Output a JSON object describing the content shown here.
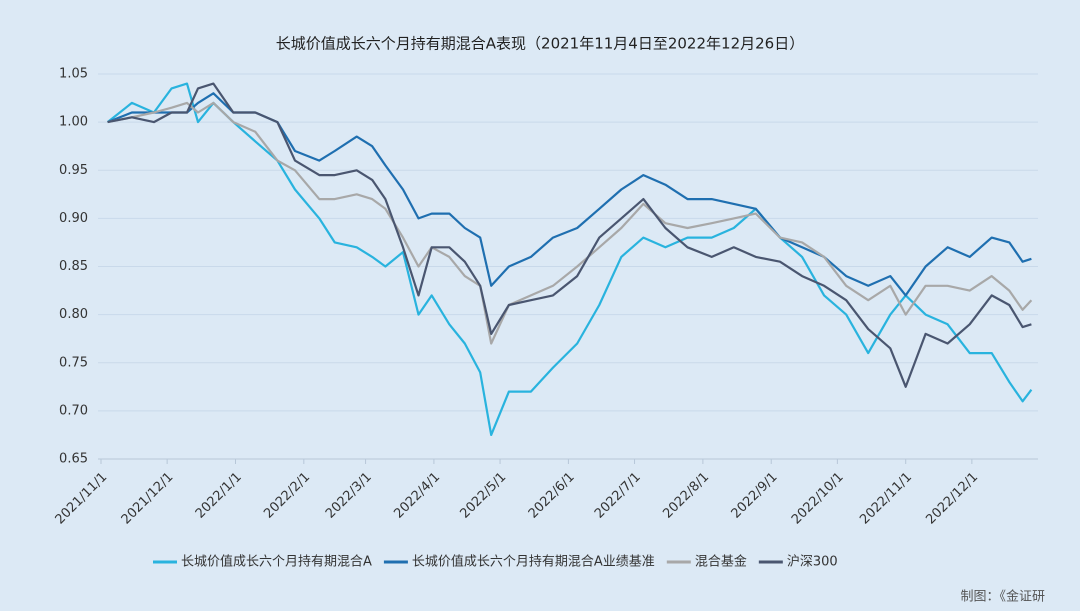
{
  "chart_data": {
    "type": "line",
    "title": "长城价值成长六个月持有期混合A表现（2021年11月4日至2022年12月26日）",
    "source": "制图：《金证研",
    "x": [
      "2021/11/4",
      "2021/11/15",
      "2021/11/25",
      "2021/12/3",
      "2021/12/10",
      "2021/12/15",
      "2021/12/22",
      "2021/12/31",
      "2022/1/10",
      "2022/1/20",
      "2022/1/28",
      "2022/2/8",
      "2022/2/15",
      "2022/2/25",
      "2022/3/4",
      "2022/3/10",
      "2022/3/18",
      "2022/3/25",
      "2022/3/31",
      "2022/4/8",
      "2022/4/15",
      "2022/4/22",
      "2022/4/27",
      "2022/5/5",
      "2022/5/15",
      "2022/5/25",
      "2022/6/5",
      "2022/6/15",
      "2022/6/25",
      "2022/7/5",
      "2022/7/15",
      "2022/7/25",
      "2022/8/5",
      "2022/8/15",
      "2022/8/25",
      "2022/9/5",
      "2022/9/15",
      "2022/9/25",
      "2022/10/5",
      "2022/10/15",
      "2022/10/25",
      "2022/11/1",
      "2022/11/10",
      "2022/11/20",
      "2022/11/30",
      "2022/12/10",
      "2022/12/18",
      "2022/12/24",
      "2022/12/28"
    ],
    "series": [
      {
        "name": "长城价值成长六个月持有期混合A",
        "color": "#29b3de",
        "values": [
          1.0,
          1.02,
          1.01,
          1.035,
          1.04,
          1.0,
          1.02,
          1.0,
          0.98,
          0.96,
          0.93,
          0.9,
          0.875,
          0.87,
          0.86,
          0.85,
          0.865,
          0.8,
          0.82,
          0.79,
          0.77,
          0.74,
          0.675,
          0.72,
          0.72,
          0.745,
          0.77,
          0.81,
          0.86,
          0.88,
          0.87,
          0.88,
          0.88,
          0.89,
          0.91,
          0.88,
          0.86,
          0.82,
          0.8,
          0.76,
          0.8,
          0.82,
          0.8,
          0.79,
          0.76,
          0.76,
          0.73,
          0.71,
          0.722
        ]
      },
      {
        "name": "长城价值成长六个月持有期混合A业绩基准",
        "color": "#1f6fb0",
        "values": [
          1.0,
          1.01,
          1.01,
          1.01,
          1.01,
          1.02,
          1.03,
          1.01,
          1.01,
          1.0,
          0.97,
          0.96,
          0.97,
          0.985,
          0.975,
          0.955,
          0.93,
          0.9,
          0.905,
          0.905,
          0.89,
          0.88,
          0.83,
          0.85,
          0.86,
          0.88,
          0.89,
          0.91,
          0.93,
          0.945,
          0.935,
          0.92,
          0.92,
          0.915,
          0.91,
          0.88,
          0.87,
          0.86,
          0.84,
          0.83,
          0.84,
          0.82,
          0.85,
          0.87,
          0.86,
          0.88,
          0.875,
          0.855,
          0.858
        ]
      },
      {
        "name": "混合基金",
        "color": "#a8a8a8",
        "values": [
          1.0,
          1.005,
          1.01,
          1.015,
          1.02,
          1.01,
          1.02,
          1.0,
          0.99,
          0.96,
          0.95,
          0.92,
          0.92,
          0.925,
          0.92,
          0.91,
          0.88,
          0.85,
          0.87,
          0.86,
          0.84,
          0.83,
          0.77,
          0.81,
          0.82,
          0.83,
          0.85,
          0.87,
          0.89,
          0.915,
          0.895,
          0.89,
          0.895,
          0.9,
          0.905,
          0.88,
          0.875,
          0.86,
          0.83,
          0.815,
          0.83,
          0.8,
          0.83,
          0.83,
          0.825,
          0.84,
          0.825,
          0.805,
          0.815
        ]
      },
      {
        "name": "沪深300",
        "color": "#4a5670",
        "values": [
          1.0,
          1.005,
          1.0,
          1.01,
          1.01,
          1.035,
          1.04,
          1.01,
          1.01,
          1.0,
          0.96,
          0.945,
          0.945,
          0.95,
          0.94,
          0.92,
          0.87,
          0.82,
          0.87,
          0.87,
          0.855,
          0.83,
          0.78,
          0.81,
          0.815,
          0.82,
          0.84,
          0.88,
          0.9,
          0.92,
          0.89,
          0.87,
          0.86,
          0.87,
          0.86,
          0.855,
          0.84,
          0.83,
          0.815,
          0.785,
          0.765,
          0.725,
          0.78,
          0.77,
          0.79,
          0.82,
          0.81,
          0.787,
          0.79
        ]
      }
    ],
    "xlim": [
      "2021/11/1",
      "2022/12/31"
    ],
    "xticks": [
      "2021/11/1",
      "2021/12/1",
      "2022/1/1",
      "2022/2/1",
      "2022/3/1",
      "2022/4/1",
      "2022/5/1",
      "2022/6/1",
      "2022/7/1",
      "2022/8/1",
      "2022/9/1",
      "2022/10/1",
      "2022/11/1",
      "2022/12/1"
    ],
    "ylim": [
      0.65,
      1.05
    ],
    "yticks": [
      0.65,
      {
        "value": 0.7,
        "label": "0.70"
      },
      0.75,
      {
        "value": 0.8,
        "label": "0.80"
      },
      0.85,
      {
        "value": 0.9,
        "label": "0.90"
      },
      0.95,
      {
        "value": 1.0,
        "label": "1.00"
      },
      1.05
    ],
    "grid": true,
    "legend": "bottom"
  }
}
